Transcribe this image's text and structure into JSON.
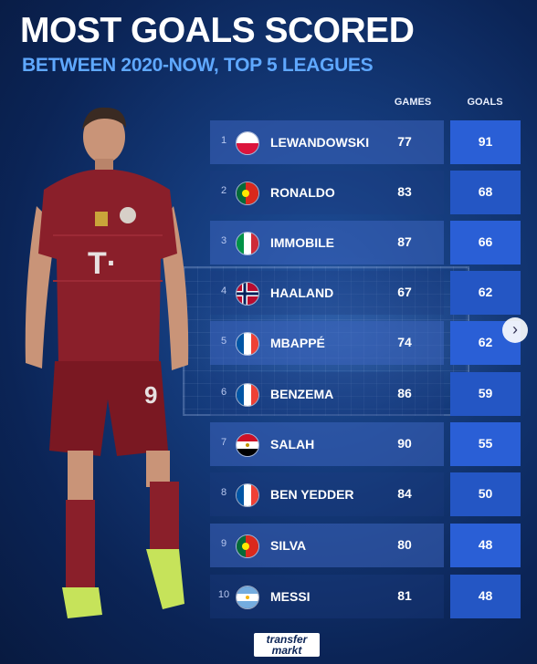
{
  "header": {
    "title": "MOST GOALS SCORED",
    "subtitle": "BETWEEN 2020-NOW, TOP 5 LEAGUES"
  },
  "columns": {
    "games": "GAMES",
    "goals": "GOALS"
  },
  "rows": [
    {
      "rank": "1",
      "name": "LEWANDOWSKI",
      "games": "77",
      "goals": "91",
      "flag": "poland"
    },
    {
      "rank": "2",
      "name": "RONALDO",
      "games": "83",
      "goals": "68",
      "flag": "portugal"
    },
    {
      "rank": "3",
      "name": "IMMOBILE",
      "games": "87",
      "goals": "66",
      "flag": "italy"
    },
    {
      "rank": "4",
      "name": "HAALAND",
      "games": "67",
      "goals": "62",
      "flag": "norway"
    },
    {
      "rank": "5",
      "name": "MBAPPÉ",
      "games": "74",
      "goals": "62",
      "flag": "france"
    },
    {
      "rank": "6",
      "name": "BENZEMA",
      "games": "86",
      "goals": "59",
      "flag": "france"
    },
    {
      "rank": "7",
      "name": "SALAH",
      "games": "90",
      "goals": "55",
      "flag": "egypt"
    },
    {
      "rank": "8",
      "name": "BEN YEDDER",
      "games": "84",
      "goals": "50",
      "flag": "france"
    },
    {
      "rank": "9",
      "name": "SILVA",
      "games": "80",
      "goals": "48",
      "flag": "portugal"
    },
    {
      "rank": "10",
      "name": "MESSI",
      "games": "81",
      "goals": "48",
      "flag": "argentina"
    }
  ],
  "brand": {
    "line1": "transfer",
    "line2": "markt"
  },
  "colors": {
    "background": "#143a7a",
    "subtitle": "#5fa8ff",
    "goals_box": "#2a5fd6",
    "jersey": "#8a1f2a"
  }
}
